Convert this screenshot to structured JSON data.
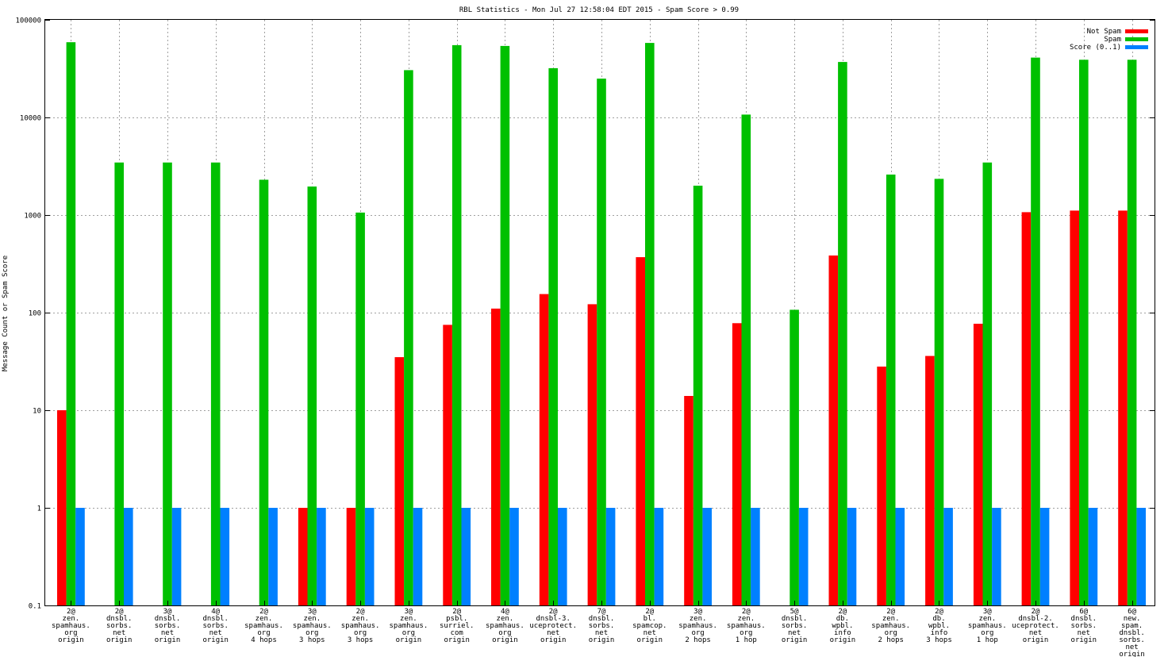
{
  "chart_data": {
    "type": "bar",
    "title": "RBL Statistics - Mon Jul 27 12:58:04 EDT 2015 - Spam Score > 0.99",
    "ylabel": "Message Count or Spam Score",
    "xlabel": "",
    "yscale": "log",
    "ylim": [
      0.1,
      100000
    ],
    "yticks": [
      "0.1",
      "1",
      "10",
      "100",
      "1000",
      "10000",
      "100000"
    ],
    "grid": true,
    "legend_position": "top-right",
    "categories": [
      [
        "2@",
        "zen.",
        "spamhaus.",
        "org",
        "origin"
      ],
      [
        "2@",
        "dnsbl.",
        "sorbs.",
        "net",
        "origin"
      ],
      [
        "3@",
        "dnsbl.",
        "sorbs.",
        "net",
        "origin"
      ],
      [
        "4@",
        "dnsbl.",
        "sorbs.",
        "net",
        "origin"
      ],
      [
        "2@",
        "zen.",
        "spamhaus.",
        "org",
        "4 hops"
      ],
      [
        "3@",
        "zen.",
        "spamhaus.",
        "org",
        "3 hops"
      ],
      [
        "2@",
        "zen.",
        "spamhaus.",
        "org",
        "3 hops"
      ],
      [
        "3@",
        "zen.",
        "spamhaus.",
        "org",
        "origin"
      ],
      [
        "2@",
        "psbl.",
        "surriel.",
        "com",
        "origin"
      ],
      [
        "4@",
        "zen.",
        "spamhaus.",
        "org",
        "origin"
      ],
      [
        "2@",
        "dnsbl-3.",
        "uceprotect.",
        "net",
        "origin"
      ],
      [
        "7@",
        "dnsbl.",
        "sorbs.",
        "net",
        "origin"
      ],
      [
        "2@",
        "bl.",
        "spamcop.",
        "net",
        "origin"
      ],
      [
        "3@",
        "zen.",
        "spamhaus.",
        "org",
        "2 hops"
      ],
      [
        "2@",
        "zen.",
        "spamhaus.",
        "org",
        "1 hop"
      ],
      [
        "5@",
        "dnsbl.",
        "sorbs.",
        "net",
        "origin"
      ],
      [
        "2@",
        "db.",
        "wpbl.",
        "info",
        "origin"
      ],
      [
        "2@",
        "zen.",
        "spamhaus.",
        "org",
        "2 hops"
      ],
      [
        "2@",
        "db.",
        "wpbl.",
        "info",
        "3 hops"
      ],
      [
        "3@",
        "zen.",
        "spamhaus.",
        "org",
        "1 hop"
      ],
      [
        "2@",
        "dnsbl-2.",
        "uceprotect.",
        "net",
        "origin"
      ],
      [
        "6@",
        "dnsbl.",
        "sorbs.",
        "net",
        "origin"
      ],
      [
        "6@",
        "new.",
        "spam.",
        "dnsbl.",
        "sorbs.",
        "net",
        "origin"
      ]
    ],
    "series": [
      {
        "name": "Not Spam",
        "color": "#ff0000",
        "values": [
          10,
          null,
          null,
          null,
          null,
          1,
          1,
          35,
          75,
          110,
          155,
          122,
          370,
          14,
          78,
          null,
          385,
          28,
          36,
          77,
          1070,
          1110,
          1110
        ]
      },
      {
        "name": "Spam",
        "color": "#00c000",
        "values": [
          59000,
          3450,
          3450,
          3450,
          2300,
          1960,
          1060,
          30500,
          55000,
          54000,
          32000,
          25000,
          58000,
          2000,
          10700,
          107,
          37000,
          2600,
          2350,
          3450,
          41000,
          39000,
          39000
        ]
      },
      {
        "name": "Score (0..1)",
        "color": "#0080ff",
        "values": [
          1,
          1,
          1,
          1,
          1,
          1,
          1,
          1,
          1,
          1,
          1,
          1,
          1,
          1,
          1,
          1,
          1,
          1,
          1,
          1,
          1,
          1,
          1
        ]
      }
    ]
  }
}
